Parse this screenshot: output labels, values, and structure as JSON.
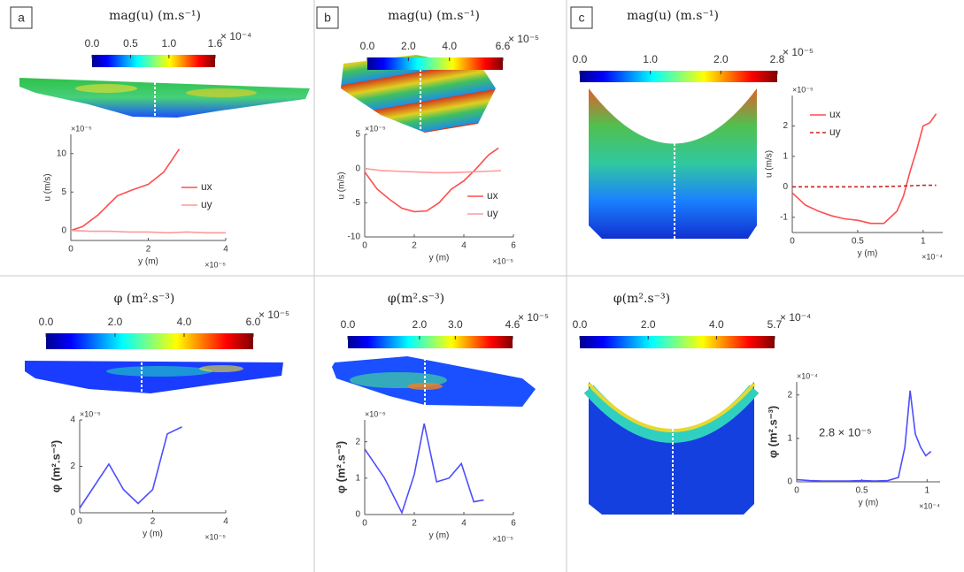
{
  "panel_labels": [
    "a",
    "b",
    "c"
  ],
  "chart_data": [
    {
      "type": "line",
      "colorbar": {
        "title": "mag(u)  (m.s⁻¹)",
        "lim": [
          0,
          1.6
        ],
        "ticks": [
          {
            "value": 0,
            "label": "0.0"
          },
          {
            "value": 0.5,
            "label": "0.5"
          },
          {
            "value": 1,
            "label": "1.0"
          },
          {
            "value": 1.6,
            "label": "1.6"
          }
        ],
        "exponent": "× 10⁻⁴"
      },
      "x_label": "y (m)",
      "y_label": "u (m/s)",
      "x_multiplier": "×10⁻⁵",
      "y_multiplier": "×10⁻⁵",
      "xlim": [
        0,
        4
      ],
      "xticks": [
        0,
        2,
        4
      ],
      "ylim": [
        -1.3,
        12.5
      ],
      "yticks": [
        0,
        5,
        10
      ],
      "legend": true,
      "series": [
        {
          "name": "ux",
          "color": "#ff4d4d",
          "dash": false,
          "x": [
            0,
            0.3,
            0.7,
            1.2,
            1.6,
            2.0,
            2.4,
            2.8
          ],
          "values": [
            0,
            0.5,
            2,
            4.5,
            5.3,
            6,
            7.6,
            10.6
          ]
        },
        {
          "name": "uy",
          "color": "#ff9a9a",
          "dash": false,
          "x": [
            0,
            0.5,
            1.0,
            1.5,
            2.0,
            2.5,
            3.0,
            3.5,
            4.0
          ],
          "values": [
            0,
            -0.1,
            -0.1,
            -0.2,
            -0.2,
            -0.3,
            -0.2,
            -0.3,
            -0.3
          ]
        }
      ]
    },
    {
      "type": "line",
      "colorbar": {
        "title": "φ  (m².s⁻³)",
        "lim": [
          0,
          6
        ],
        "ticks": [
          {
            "value": 0,
            "label": "0.0"
          },
          {
            "value": 2,
            "label": "2.0"
          },
          {
            "value": 4,
            "label": "4.0"
          },
          {
            "value": 6,
            "label": "6.0"
          }
        ],
        "exponent": "× 10⁻⁵"
      },
      "x_label": "y (m)",
      "y_label": "φ (m².s⁻³)",
      "x_multiplier": "×10⁻⁵",
      "y_multiplier": "×10⁻⁵",
      "xlim": [
        0,
        4
      ],
      "xticks": [
        0,
        2,
        4
      ],
      "ylim": [
        0,
        4
      ],
      "yticks": [
        0,
        2,
        4
      ],
      "legend": false,
      "series": [
        {
          "name": "φ",
          "color": "#4d4dff",
          "dash": false,
          "x": [
            0,
            0.8,
            1.2,
            1.6,
            2.0,
            2.4,
            2.8
          ],
          "values": [
            0.2,
            2.1,
            1.0,
            0.4,
            1.0,
            3.4,
            3.7
          ]
        }
      ]
    },
    {
      "type": "line",
      "colorbar": {
        "title": "mag(u)  (m.s⁻¹)",
        "lim": [
          0,
          6.6
        ],
        "ticks": [
          {
            "value": 0,
            "label": "0.0"
          },
          {
            "value": 2,
            "label": "2.0"
          },
          {
            "value": 4,
            "label": "4.0"
          },
          {
            "value": 6.6,
            "label": "6.6"
          }
        ],
        "exponent": "× 10⁻⁵"
      },
      "x_label": "y (m)",
      "y_label": "u (m/s)",
      "x_multiplier": "×10⁻⁵",
      "y_multiplier": "×10⁻⁵",
      "xlim": [
        0,
        6
      ],
      "xticks": [
        0,
        2,
        4,
        6
      ],
      "ylim": [
        -10,
        5
      ],
      "yticks": [
        -10,
        -5,
        0,
        5
      ],
      "legend": true,
      "series": [
        {
          "name": "ux",
          "color": "#ff4d4d",
          "dash": false,
          "x": [
            0,
            0.5,
            1,
            1.5,
            2,
            2.5,
            3,
            3.5,
            4,
            4.5,
            5,
            5.4
          ],
          "values": [
            -0.5,
            -3,
            -4.5,
            -5.8,
            -6.3,
            -6.2,
            -5,
            -3,
            -1.8,
            0,
            2,
            3
          ]
        },
        {
          "name": "uy",
          "color": "#ff9a9a",
          "dash": false,
          "x": [
            0,
            0.7,
            1.4,
            2.1,
            2.8,
            3.5,
            4.2,
            4.9,
            5.5
          ],
          "values": [
            0,
            -0.3,
            -0.4,
            -0.5,
            -0.6,
            -0.6,
            -0.5,
            -0.4,
            -0.3
          ]
        }
      ]
    },
    {
      "type": "line",
      "colorbar": {
        "title": "φ(m².s⁻³)",
        "lim": [
          0,
          4.6
        ],
        "ticks": [
          {
            "value": 0,
            "label": "0.0"
          },
          {
            "value": 2,
            "label": "2.0"
          },
          {
            "value": 3,
            "label": "3.0"
          },
          {
            "value": 4.6,
            "label": "4.6"
          }
        ],
        "exponent": "× 10⁻⁵"
      },
      "x_label": "y (m)",
      "y_label": "φ (m².s⁻³)",
      "x_multiplier": "×10⁻⁵",
      "y_multiplier": "×10⁻⁵",
      "xlim": [
        0,
        6
      ],
      "xticks": [
        0,
        2,
        4,
        6
      ],
      "ylim": [
        0,
        2.6
      ],
      "yticks": [
        0,
        1,
        2
      ],
      "legend": false,
      "series": [
        {
          "name": "φ",
          "color": "#4d4dff",
          "dash": false,
          "x": [
            0,
            0.8,
            1.5,
            2.0,
            2.4,
            2.9,
            3.4,
            3.9,
            4.4,
            4.8
          ],
          "values": [
            1.8,
            1.0,
            0.05,
            1.1,
            2.5,
            0.9,
            1.0,
            1.4,
            0.35,
            0.4
          ]
        }
      ]
    },
    {
      "type": "line",
      "colorbar": {
        "title": "mag(u)  (m.s⁻¹)",
        "lim": [
          0,
          2.8
        ],
        "ticks": [
          {
            "value": 0,
            "label": "0.0"
          },
          {
            "value": 1,
            "label": "1.0"
          },
          {
            "value": 2,
            "label": "2.0"
          },
          {
            "value": 2.8,
            "label": "2.8"
          }
        ],
        "exponent": "× 10⁻⁵"
      },
      "x_label": "y (m)",
      "y_label": "u (m/s)",
      "x_multiplier": "×10⁻⁴",
      "y_multiplier": "×10⁻⁵",
      "xlim": [
        0,
        1.15
      ],
      "xticks": [
        0,
        0.5,
        1
      ],
      "ylim": [
        -1.5,
        3
      ],
      "yticks": [
        -1,
        0,
        1,
        2
      ],
      "legend": true,
      "series": [
        {
          "name": "ux",
          "color": "#ff4d4d",
          "dash": false,
          "x": [
            0,
            0.1,
            0.2,
            0.3,
            0.4,
            0.5,
            0.6,
            0.7,
            0.8,
            0.85,
            0.9,
            0.95,
            1.0,
            1.05,
            1.1
          ],
          "values": [
            -0.2,
            -0.6,
            -0.8,
            -0.95,
            -1.05,
            -1.1,
            -1.2,
            -1.2,
            -0.8,
            -0.3,
            0.5,
            1.2,
            2.0,
            2.1,
            2.4
          ]
        },
        {
          "name": "uy",
          "color": "#cc2222",
          "dash": true,
          "x": [
            0,
            0.2,
            0.4,
            0.6,
            0.8,
            1.0,
            1.1
          ],
          "values": [
            0,
            0,
            0,
            0,
            0.02,
            0.05,
            0.05
          ]
        }
      ]
    },
    {
      "type": "line",
      "colorbar": {
        "title": "φ(m².s⁻³)",
        "lim": [
          0,
          5.7
        ],
        "ticks": [
          {
            "value": 0,
            "label": "0.0"
          },
          {
            "value": 2,
            "label": "2.0"
          },
          {
            "value": 4,
            "label": "4.0"
          },
          {
            "value": 5.7,
            "label": "5.7"
          }
        ],
        "exponent": "× 10⁻⁴"
      },
      "x_label": "y (m)",
      "y_label": "φ (m².s⁻³)",
      "x_multiplier": "×10⁻⁴",
      "y_multiplier": "×10⁻⁴",
      "annotation": "2.8 × 10⁻⁵",
      "xlim": [
        0,
        1.1
      ],
      "xticks": [
        0,
        0.5,
        1
      ],
      "ylim": [
        0,
        2.3
      ],
      "yticks": [
        0,
        1,
        2
      ],
      "legend": false,
      "series": [
        {
          "name": "φ",
          "color": "#4d4dff",
          "dash": false,
          "x": [
            0,
            0.1,
            0.2,
            0.3,
            0.4,
            0.5,
            0.6,
            0.7,
            0.78,
            0.83,
            0.87,
            0.91,
            0.95,
            0.99,
            1.03
          ],
          "values": [
            0.05,
            0.03,
            0.02,
            0.02,
            0.02,
            0.03,
            0.02,
            0.03,
            0.1,
            0.8,
            2.1,
            1.1,
            0.8,
            0.6,
            0.7
          ]
        }
      ]
    }
  ]
}
